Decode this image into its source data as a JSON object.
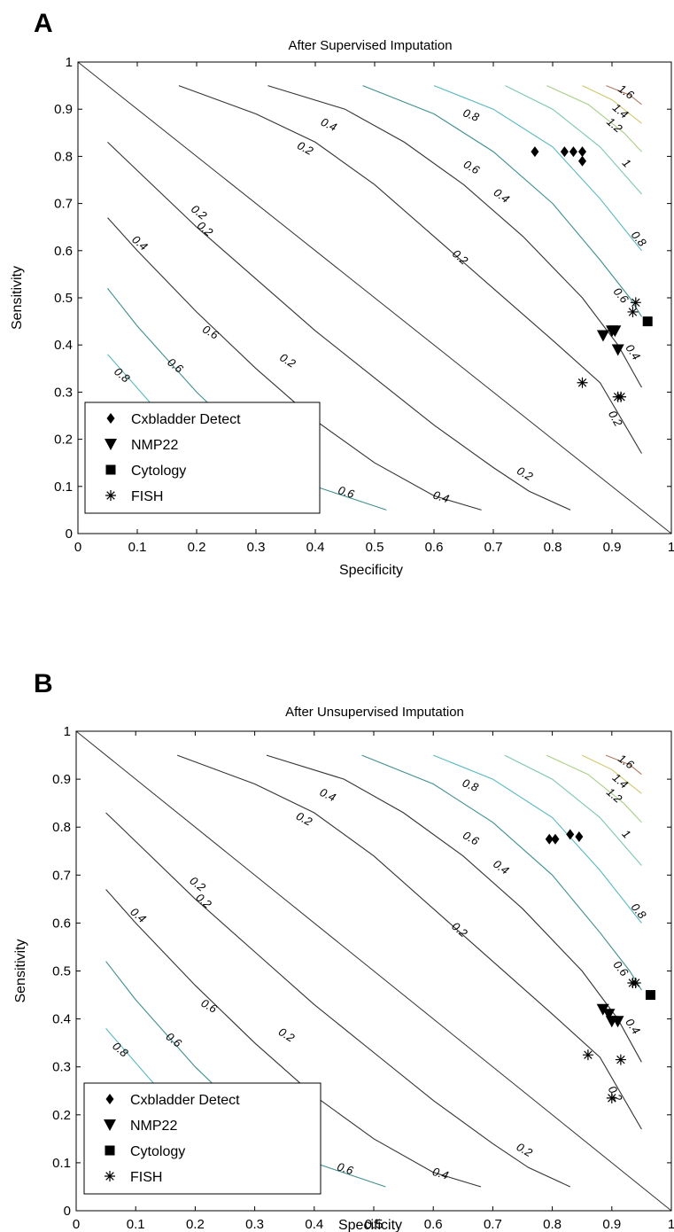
{
  "chart_data": [
    {
      "type": "scatter",
      "panel_label": "A",
      "title": "After Supervised Imputation",
      "xlabel": "Specificity",
      "ylabel": "Sensitivity",
      "xlim": [
        0,
        1
      ],
      "ylim": [
        0,
        1
      ],
      "xticks": [
        "0",
        "0.1",
        "0.2",
        "0.3",
        "0.4",
        "0.5",
        "0.6",
        "0.7",
        "0.8",
        "0.9",
        "1"
      ],
      "yticks": [
        "0",
        "0.1",
        "0.2",
        "0.3",
        "0.4",
        "0.5",
        "0.6",
        "0.7",
        "0.8",
        "0.9",
        "1"
      ],
      "grid": false,
      "legend_position": "bottom-left",
      "contour_labels": [
        "0.2",
        "0.4",
        "0.6",
        "0.8",
        "1",
        "1.2",
        "1.4",
        "1.6"
      ],
      "series": [
        {
          "name": "Cxbladder Detect",
          "marker": "diamond",
          "x": [
            0.77,
            0.82,
            0.835,
            0.85,
            0.85
          ],
          "y": [
            0.81,
            0.81,
            0.81,
            0.81,
            0.79
          ]
        },
        {
          "name": "NMP22",
          "marker": "triangle-down",
          "x": [
            0.885,
            0.9,
            0.905,
            0.91
          ],
          "y": [
            0.42,
            0.43,
            0.43,
            0.39
          ]
        },
        {
          "name": "Cytology",
          "marker": "square",
          "x": [
            0.96
          ],
          "y": [
            0.45
          ]
        },
        {
          "name": "FISH",
          "marker": "asterisk",
          "x": [
            0.94,
            0.935,
            0.85,
            0.91,
            0.915
          ],
          "y": [
            0.49,
            0.47,
            0.32,
            0.29,
            0.29
          ]
        }
      ]
    },
    {
      "type": "scatter",
      "panel_label": "B",
      "title": "After Unsupervised Imputation",
      "xlabel": "Specificity",
      "ylabel": "Sensitivity",
      "xlim": [
        0,
        1
      ],
      "ylim": [
        0,
        1
      ],
      "xticks": [
        "0",
        "0.1",
        "0.2",
        "0.3",
        "0.4",
        "0.5",
        "0.6",
        "0.7",
        "0.8",
        "0.9",
        "1"
      ],
      "yticks": [
        "0",
        "0.1",
        "0.2",
        "0.3",
        "0.4",
        "0.5",
        "0.6",
        "0.7",
        "0.8",
        "0.9",
        "1"
      ],
      "grid": false,
      "legend_position": "bottom-left",
      "contour_labels": [
        "0.2",
        "0.4",
        "0.6",
        "0.8",
        "1",
        "1.2",
        "1.4",
        "1.6"
      ],
      "series": [
        {
          "name": "Cxbladder Detect",
          "marker": "diamond",
          "x": [
            0.795,
            0.805,
            0.83,
            0.845
          ],
          "y": [
            0.775,
            0.775,
            0.785,
            0.78
          ]
        },
        {
          "name": "NMP22",
          "marker": "triangle-down",
          "x": [
            0.885,
            0.895,
            0.9,
            0.91
          ],
          "y": [
            0.42,
            0.41,
            0.395,
            0.395
          ]
        },
        {
          "name": "Cytology",
          "marker": "square",
          "x": [
            0.965
          ],
          "y": [
            0.45
          ]
        },
        {
          "name": "FISH",
          "marker": "asterisk",
          "x": [
            0.935,
            0.94,
            0.86,
            0.915,
            0.9
          ],
          "y": [
            0.475,
            0.475,
            0.325,
            0.315,
            0.235
          ]
        }
      ]
    }
  ],
  "colors": {
    "contour_0.2": "#333333",
    "contour_0.4": "#333333",
    "contour_0.6": "#3f8f8f",
    "contour_0.8": "#57b9c0",
    "contour_1": "#7cc7b0",
    "contour_1.2": "#a8cf86",
    "contour_1.4": "#cfc96a",
    "contour_1.6": "#b07a62",
    "markers": "#000000"
  }
}
